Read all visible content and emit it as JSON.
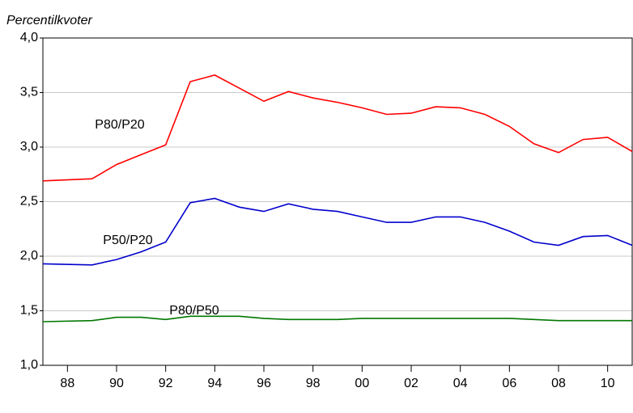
{
  "chart_data": {
    "type": "line",
    "title": "Percentilkvoter",
    "x": [
      1987,
      1989,
      1990,
      1991,
      1992,
      1993,
      1994,
      1995,
      1996,
      1997,
      1998,
      1999,
      2000,
      2001,
      2002,
      2003,
      2004,
      2005,
      2006,
      2007,
      2008,
      2009,
      2010,
      2011
    ],
    "series": [
      {
        "name": "P80/P20",
        "color": "#ff0000",
        "values": [
          2.69,
          2.71,
          2.84,
          2.93,
          3.02,
          3.6,
          3.66,
          3.54,
          3.42,
          3.51,
          3.45,
          3.41,
          3.36,
          3.3,
          3.31,
          3.37,
          3.36,
          3.3,
          3.19,
          3.03,
          2.95,
          3.07,
          3.09,
          2.96
        ]
      },
      {
        "name": "P50/P20",
        "color": "#0000cc",
        "values": [
          1.93,
          1.92,
          1.97,
          2.04,
          2.13,
          2.49,
          2.53,
          2.45,
          2.41,
          2.48,
          2.43,
          2.41,
          2.36,
          2.31,
          2.31,
          2.36,
          2.36,
          2.31,
          2.23,
          2.13,
          2.1,
          2.18,
          2.19,
          2.1
        ]
      },
      {
        "name": "P80/P50",
        "color": "#007700",
        "values": [
          1.4,
          1.41,
          1.44,
          1.44,
          1.42,
          1.45,
          1.45,
          1.45,
          1.43,
          1.42,
          1.42,
          1.42,
          1.43,
          1.43,
          1.43,
          1.43,
          1.43,
          1.43,
          1.43,
          1.42,
          1.41,
          1.41,
          1.41,
          1.41
        ]
      }
    ],
    "xlim": [
      1987,
      2011
    ],
    "xticks": [
      {
        "value": 1988,
        "label": "88"
      },
      {
        "value": 1990,
        "label": "90"
      },
      {
        "value": 1992,
        "label": "92"
      },
      {
        "value": 1994,
        "label": "94"
      },
      {
        "value": 1996,
        "label": "96"
      },
      {
        "value": 1998,
        "label": "98"
      },
      {
        "value": 2000,
        "label": "00"
      },
      {
        "value": 2002,
        "label": "02"
      },
      {
        "value": 2004,
        "label": "04"
      },
      {
        "value": 2006,
        "label": "06"
      },
      {
        "value": 2008,
        "label": "08"
      },
      {
        "value": 2010,
        "label": "10"
      }
    ],
    "ylim": [
      1.0,
      4.0
    ],
    "yticks": [
      {
        "value": 1.0,
        "label": "1,0"
      },
      {
        "value": 1.5,
        "label": "1,5"
      },
      {
        "value": 2.0,
        "label": "2,0"
      },
      {
        "value": 2.5,
        "label": "2,5"
      },
      {
        "value": 3.0,
        "label": "3,0"
      },
      {
        "value": 3.5,
        "label": "3,5"
      },
      {
        "value": 4.0,
        "label": "4,0"
      }
    ],
    "grid": true
  }
}
